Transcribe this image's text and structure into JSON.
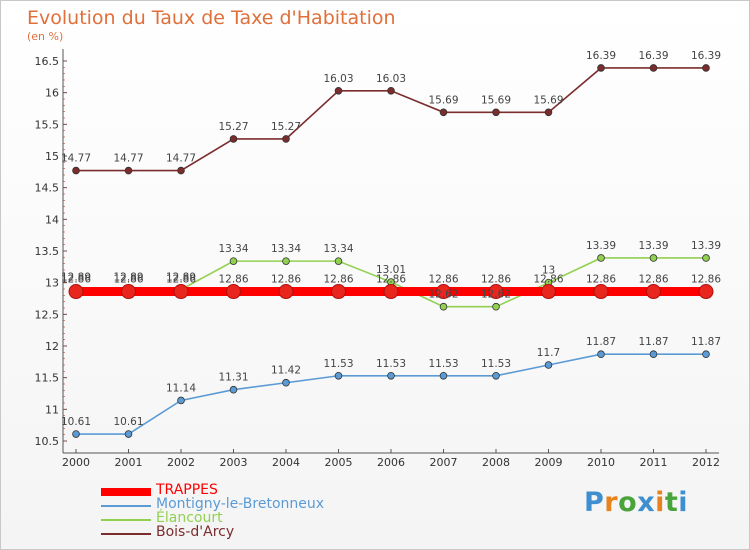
{
  "title": "Evolution du Taux de Taxe d'Habitation",
  "unit": "(en %)",
  "logo": {
    "letters": [
      "P",
      "r",
      "o",
      "x",
      "i",
      "t",
      "i"
    ],
    "colors": [
      "#3f8fd0",
      "#e8821e",
      "#4aa43c",
      "#3f8fd0",
      "#e8821e",
      "#4aa43c",
      "#3f8fd0"
    ]
  },
  "chart_data": {
    "type": "line",
    "title": "Evolution du Taux de Taxe d'Habitation",
    "ylabel": "(en %)",
    "xlabel": "",
    "x": [
      "2000",
      "2001",
      "2002",
      "2003",
      "2004",
      "2005",
      "2006",
      "2007",
      "2008",
      "2009",
      "2010",
      "2011",
      "2012"
    ],
    "ylim": [
      10.5,
      16.5
    ],
    "yticks": [
      "10.5",
      "11",
      "11.5",
      "12",
      "12.5",
      "13",
      "13.5",
      "14",
      "14.5",
      "15",
      "15.5",
      "16",
      "16.5"
    ],
    "grid": false,
    "legend": "bottom-left",
    "series": [
      {
        "name": "TRAPPES",
        "color": "#ff0000",
        "values": [
          12.86,
          12.86,
          12.86,
          12.86,
          12.86,
          12.86,
          12.86,
          12.86,
          12.86,
          12.86,
          12.86,
          12.86,
          12.86
        ],
        "labels": [
          "12.86",
          "12.86",
          "12.86",
          "12.86",
          "12.86",
          "12.86",
          "12.86",
          "12.86",
          "12.86",
          "12.86",
          "12.86",
          "12.86",
          "12.86"
        ]
      },
      {
        "name": "Montigny-le-Bretonneux",
        "color": "#5b9bd5",
        "values": [
          10.61,
          10.61,
          11.14,
          11.31,
          11.42,
          11.53,
          11.53,
          11.53,
          11.53,
          11.7,
          11.87,
          11.87,
          11.87
        ],
        "labels": [
          "10.61",
          "10.61",
          "11.14",
          "11.31",
          "11.42",
          "11.53",
          "11.53",
          "11.53",
          "11.53",
          "11.7",
          "11.87",
          "11.87",
          "11.87"
        ]
      },
      {
        "name": "Élancourt",
        "color": "#92d050",
        "values": [
          12.89,
          12.89,
          12.89,
          13.34,
          13.34,
          13.34,
          13.01,
          12.62,
          12.62,
          13,
          13.39,
          13.39,
          13.39
        ],
        "labels": [
          "12.89",
          "12.89",
          "12.89",
          "13.34",
          "13.34",
          "13.34",
          "13.01",
          "12.62",
          "12.62",
          "13",
          "13.39",
          "13.39",
          "13.39"
        ]
      },
      {
        "name": "Bois-d'Arcy",
        "color": "#7b2c2c",
        "values": [
          14.77,
          14.77,
          14.77,
          15.27,
          15.27,
          16.03,
          16.03,
          15.69,
          15.69,
          15.69,
          16.39,
          16.39,
          16.39
        ],
        "labels": [
          "14.77",
          "14.77",
          "14.77",
          "15.27",
          "15.27",
          "16.03",
          "16.03",
          "15.69",
          "15.69",
          "15.69",
          "16.39",
          "16.39",
          "16.39"
        ]
      }
    ]
  }
}
